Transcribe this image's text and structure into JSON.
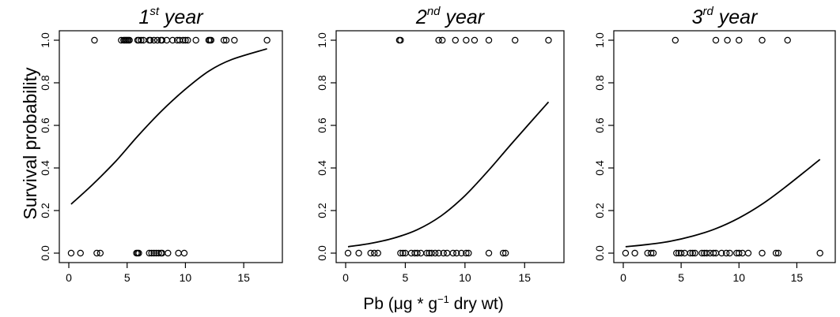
{
  "figure": {
    "ylabel": "Survival probability",
    "xlabel": {
      "main": "Pb (μg * g",
      "sup": "−1",
      "rest": " dry wt)"
    }
  },
  "chart_data": [
    {
      "type": "scatter",
      "title": {
        "main": "1",
        "sup": "st",
        "rest": " year"
      },
      "xlim": [
        0,
        17.5
      ],
      "ylim": [
        0,
        1
      ],
      "xticks": [
        "0",
        "5",
        "10",
        "15"
      ],
      "yticks": [
        "0.0",
        "0.2",
        "0.4",
        "0.6",
        "0.8",
        "1.0"
      ],
      "survived_x": [
        2.2,
        4.5,
        4.7,
        4.8,
        4.9,
        5.0,
        5.1,
        5.2,
        5.9,
        6.0,
        6.2,
        6.4,
        6.9,
        7.0,
        7.3,
        7.6,
        7.9,
        8.0,
        8.4,
        8.9,
        9.3,
        9.5,
        9.8,
        10.0,
        10.2,
        10.9,
        12.0,
        12.1,
        12.2,
        13.3,
        13.5,
        14.2,
        17.0
      ],
      "died_x": [
        0.2,
        1.0,
        2.4,
        2.7,
        5.8,
        5.9,
        6.0,
        6.9,
        7.1,
        7.3,
        7.5,
        7.7,
        7.9,
        8.0,
        8.5,
        9.4,
        9.9
      ],
      "fit_curve": [
        [
          0.2,
          0.23
        ],
        [
          2,
          0.32
        ],
        [
          4,
          0.43
        ],
        [
          6,
          0.555
        ],
        [
          8,
          0.67
        ],
        [
          10,
          0.77
        ],
        [
          12,
          0.855
        ],
        [
          14,
          0.91
        ],
        [
          17,
          0.96
        ]
      ]
    },
    {
      "type": "scatter",
      "title": {
        "main": "2",
        "sup": "nd",
        "rest": " year"
      },
      "xlim": [
        0,
        17.5
      ],
      "ylim": [
        0,
        1
      ],
      "xticks": [
        "0",
        "5",
        "10",
        "15"
      ],
      "yticks": [
        "0.0",
        "0.2",
        "0.4",
        "0.6",
        "0.8",
        "1.0"
      ],
      "survived_x": [
        4.5,
        4.6,
        7.8,
        8.1,
        9.2,
        10.1,
        10.8,
        12.0,
        14.2,
        17.0
      ],
      "died_x": [
        0.2,
        1.1,
        2.1,
        2.4,
        2.7,
        4.6,
        4.8,
        5.0,
        5.5,
        5.8,
        6.0,
        6.3,
        6.8,
        7.0,
        7.2,
        7.5,
        7.8,
        8.2,
        8.5,
        9.0,
        9.3,
        9.7,
        10.1,
        10.3,
        12.0,
        13.2,
        13.4
      ],
      "fit_curve": [
        [
          0.2,
          0.03
        ],
        [
          2,
          0.045
        ],
        [
          4,
          0.07
        ],
        [
          6,
          0.11
        ],
        [
          8,
          0.175
        ],
        [
          10,
          0.27
        ],
        [
          12,
          0.39
        ],
        [
          14,
          0.52
        ],
        [
          17,
          0.71
        ]
      ]
    },
    {
      "type": "scatter",
      "title": {
        "main": "3",
        "sup": "rd",
        "rest": " year"
      },
      "xlim": [
        0,
        17.5
      ],
      "ylim": [
        0,
        1
      ],
      "xticks": [
        "0",
        "5",
        "10",
        "15"
      ],
      "yticks": [
        "0.0",
        "0.2",
        "0.4",
        "0.6",
        "0.8",
        "1.0"
      ],
      "survived_x": [
        4.5,
        8.0,
        9.0,
        10.0,
        12.0,
        14.2
      ],
      "died_x": [
        0.2,
        1.0,
        2.1,
        2.4,
        2.6,
        4.6,
        4.8,
        5.0,
        5.3,
        5.8,
        6.0,
        6.2,
        6.8,
        7.0,
        7.2,
        7.5,
        7.8,
        8.0,
        8.5,
        8.9,
        9.2,
        9.8,
        10.0,
        10.3,
        10.8,
        12.0,
        13.2,
        13.4,
        17.0
      ],
      "fit_curve": [
        [
          0.2,
          0.03
        ],
        [
          2,
          0.04
        ],
        [
          4,
          0.055
        ],
        [
          6,
          0.08
        ],
        [
          8,
          0.115
        ],
        [
          10,
          0.165
        ],
        [
          12,
          0.23
        ],
        [
          14,
          0.31
        ],
        [
          17,
          0.44
        ]
      ]
    }
  ]
}
